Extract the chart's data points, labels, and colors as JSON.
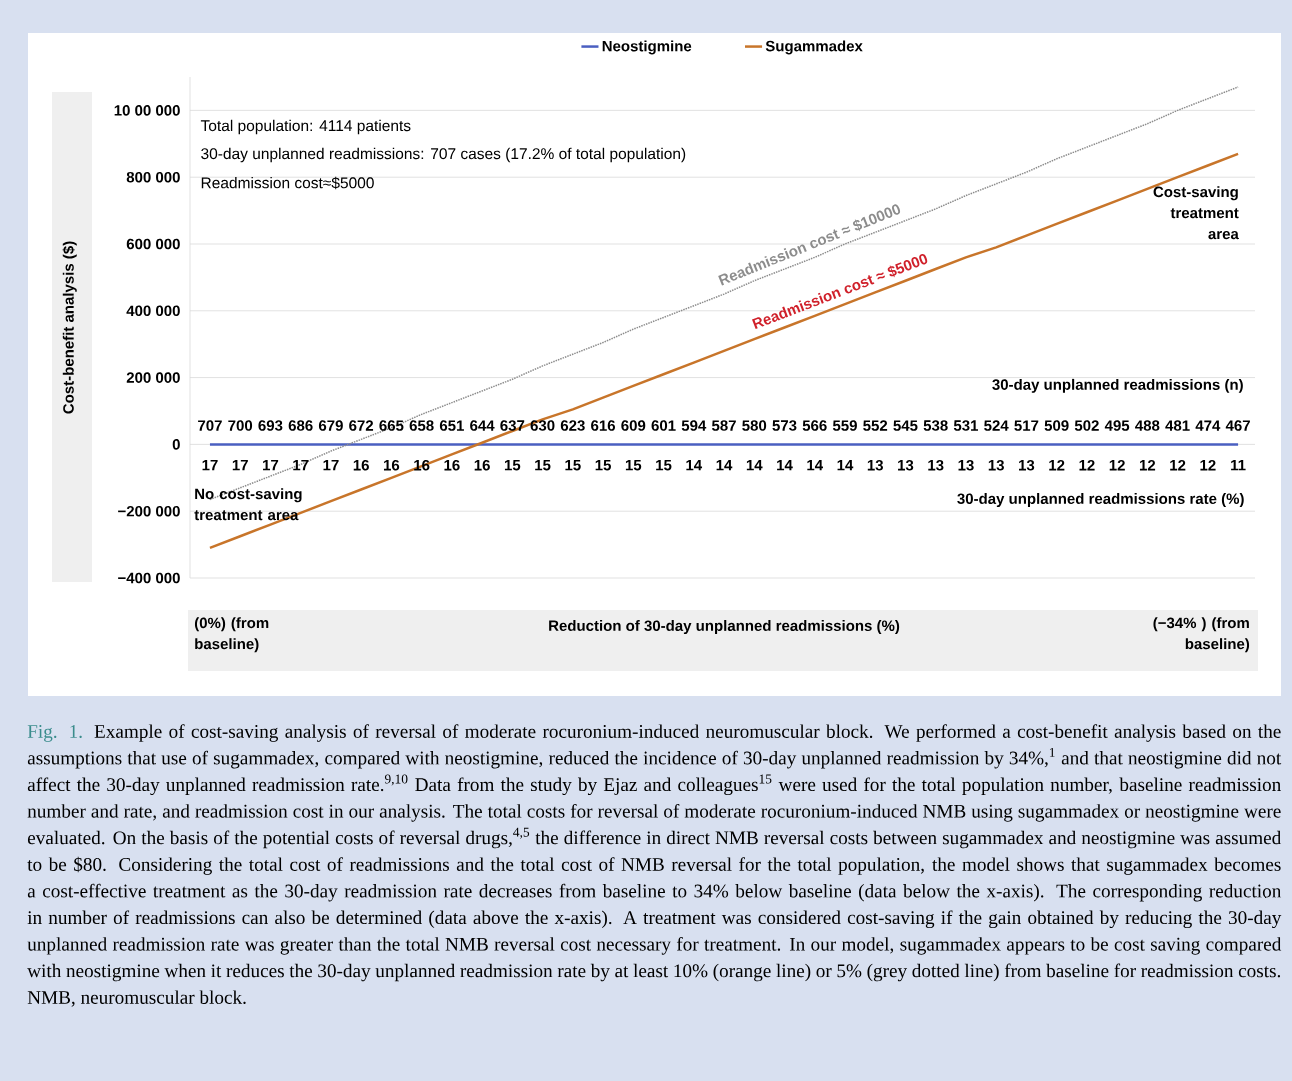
{
  "chart_data": {
    "type": "line",
    "ylabel": "Cost-benefit analysis ($)",
    "xlabel": "30-day unplanned readmissions (n)",
    "categories": [
      "707",
      "700",
      "693",
      "686",
      "679",
      "672",
      "665",
      "658",
      "651",
      "644",
      "637",
      "630",
      "623",
      "616",
      "609",
      "601",
      "594",
      "587",
      "580",
      "573",
      "566",
      "559",
      "552",
      "545",
      "538",
      "531",
      "524",
      "517",
      "509",
      "502",
      "495",
      "488",
      "481",
      "474",
      "467"
    ],
    "ylim": [
      -400000,
      1100000
    ],
    "yticks": [
      {
        "value": -400000,
        "label": "−400 000"
      },
      {
        "value": -200000,
        "label": "−200 000"
      },
      0,
      {
        "value": 200000,
        "label": "200 000"
      },
      {
        "value": 400000,
        "label": "400 000"
      },
      {
        "value": 600000,
        "label": "600 000"
      },
      {
        "value": 800000,
        "label": "800 000"
      },
      {
        "value": 1000000,
        "label": "10 00 000"
      }
    ],
    "grid": "y",
    "legend": "top",
    "marker": "none",
    "series": [
      {
        "name": "Neostigmine",
        "color": "#4a5fc1",
        "values": [
          0,
          0,
          0,
          0,
          0,
          0,
          0,
          0,
          0,
          0,
          0,
          0,
          0,
          0,
          0,
          0,
          0,
          0,
          0,
          0,
          0,
          0,
          0,
          0,
          0,
          0,
          0,
          0,
          0,
          0,
          0,
          0,
          0,
          0,
          0
        ]
      },
      {
        "color": "#8c8c8c",
        "line_style": "dotted",
        "values": [
          -165000,
          -130000,
          -95000,
          -60000,
          -20000,
          15000,
          50000,
          90000,
          125000,
          160000,
          195000,
          235000,
          270000,
          305000,
          345000,
          380000,
          415000,
          450000,
          490000,
          525000,
          560000,
          600000,
          635000,
          670000,
          705000,
          745000,
          780000,
          815000,
          855000,
          890000,
          925000,
          960000,
          1000000,
          1035000,
          1070000
        ]
      },
      {
        "name": "Sugammadex",
        "color": "#c8752a",
        "values": [
          -310000,
          -275000,
          -240000,
          -205000,
          -170000,
          -135000,
          -100000,
          -65000,
          -30000,
          5000,
          40000,
          75000,
          105000,
          140000,
          175000,
          210000,
          245000,
          280000,
          315000,
          350000,
          385000,
          420000,
          455000,
          490000,
          525000,
          560000,
          590000,
          625000,
          660000,
          695000,
          730000,
          765000,
          800000,
          835000,
          870000
        ]
      }
    ],
    "annotations": [
      "Total population: 4114 patients",
      "30-day unplanned readmissions: 707 cases (17.2% of total population)",
      "Readmission cost≈$5000",
      {
        "text": "Readmission cost ≈ $10000",
        "x": "566",
        "y": 560000
      },
      {
        "text": "Readmission cost ≈ $5000",
        "x": "559",
        "y": 420000
      },
      "Cost-saving treatment area",
      "No cost-saving treatment area",
      "Reduction of 30-day unplanned readmissions (%)",
      "(0%) (from baseline)",
      "(−34% ) (from baseline)",
      "Fig. 1.",
      "Example of cost-saving analysis of reversal of moderate rocuronium-induced neuromuscular block. We performed a cost-benefit analysis based on the assumptions that use of sugammadex, compared with neostigmine, reduced the incidence of 30-day unplanned readmission by 34%,$^{1}$ and that neostigmine did not affect the 30-day unplanned readmission rate.$^{9,10}$ Data from the study by Ejaz and colleagues$^{15}$ were used for the total population number, baseline readmission number and rate, and readmission cost in our analysis. The total costs for reversal of moderate rocuronium-induced NMB using sugammadex or neostigmine were evaluated. On the basis of the potential costs of reversal drugs,$^{4,5}$ the difference in direct NMB reversal costs between sugammadex and neostigmine was assumed to be $80. Considering the total cost of readmissions and the total cost of NMB reversal for the total population, the model shows that sugammadex becomes a cost-effective treatment as the 30-day readmission rate decreases from baseline to 34% below baseline (data below the x-axis). The corresponding reduction in number of readmissions can also be determined (data above the x-axis). A treatment was considered cost-saving if the gain obtained by reducing the 30-day unplanned readmission rate was greater than the total NMB reversal cost necessary for treatment. In our model, sugammadex appears to be cost saving compared with neostigmine when it reduces the 30-day unplanned readmission rate by at least 10% (orange line) or 5% (grey dotted line) from baseline for readmission costs. NMB, neuromuscular block.",
      "30-day unplanned readmissions rate (%)",
      {
        "text": "17",
        "x": "707",
        "y": 0
      },
      {
        "text": "17",
        "x": "700",
        "y": 0
      },
      {
        "text": "17",
        "x": "693",
        "y": 0
      },
      {
        "text": "17",
        "x": "686",
        "y": 0
      },
      {
        "text": "17",
        "x": "679",
        "y": 0
      },
      {
        "text": "16",
        "x": "672",
        "y": 0
      },
      {
        "text": "16",
        "x": "665",
        "y": 0
      },
      {
        "text": "16",
        "x": "658",
        "y": 0
      },
      {
        "text": "16",
        "x": "651",
        "y": 0
      },
      {
        "text": "16",
        "x": "644",
        "y": 0
      },
      {
        "text": "15",
        "x": "637",
        "y": 0
      },
      {
        "text": "15",
        "x": "630",
        "y": 0
      },
      {
        "text": "15",
        "x": "623",
        "y": 0
      },
      {
        "text": "15",
        "x": "616",
        "y": 0
      },
      {
        "text": "15",
        "x": "609",
        "y": 0
      },
      {
        "text": "15",
        "x": "601",
        "y": 0
      },
      {
        "text": "14",
        "x": "594",
        "y": 0
      },
      {
        "text": "14",
        "x": "587",
        "y": 0
      },
      {
        "text": "14",
        "x": "580",
        "y": 0
      },
      {
        "text": "14",
        "x": "573",
        "y": 0
      },
      {
        "text": "14",
        "x": "566",
        "y": 0
      },
      {
        "text": "14",
        "x": "559",
        "y": 0
      },
      {
        "text": "13",
        "x": "552",
        "y": 0
      },
      {
        "text": "13",
        "x": "545",
        "y": 0
      },
      {
        "text": "13",
        "x": "538",
        "y": 0
      },
      {
        "text": "13",
        "x": "531",
        "y": 0
      },
      {
        "text": "13",
        "x": "524",
        "y": 0
      },
      {
        "text": "13",
        "x": "517",
        "y": 0
      },
      {
        "text": "12",
        "x": "509",
        "y": 0
      },
      {
        "text": "12",
        "x": "502",
        "y": 0
      },
      {
        "text": "12",
        "x": "495",
        "y": 0
      },
      {
        "text": "12",
        "x": "488",
        "y": 0
      },
      {
        "text": "12",
        "x": "481",
        "y": 0
      },
      {
        "text": "12",
        "x": "474",
        "y": 0
      },
      {
        "text": "11",
        "x": "467",
        "y": 0
      }
    ]
  }
}
